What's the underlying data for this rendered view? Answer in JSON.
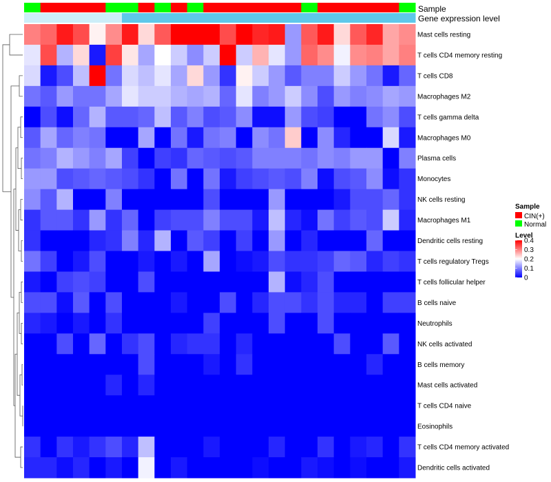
{
  "chart_data": {
    "type": "heatmap",
    "title": "",
    "annotation_tracks": [
      {
        "name": "Sample",
        "values": [
          "Normal",
          "CIN(+)",
          "CIN(+)",
          "CIN(+)",
          "CIN(+)",
          "Normal",
          "Normal",
          "CIN(+)",
          "Normal",
          "CIN(+)",
          "Normal",
          "CIN(+)",
          "CIN(+)",
          "CIN(+)",
          "CIN(+)",
          "CIN(+)",
          "CIN(+)",
          "Normal",
          "CIN(+)",
          "CIN(+)",
          "CIN(+)",
          "CIN(+)",
          "CIN(+)",
          "Normal"
        ]
      },
      {
        "name": "Gene expression level",
        "values": [
          "high",
          "high",
          "high",
          "high",
          "high",
          "high",
          "low",
          "low",
          "low",
          "low",
          "low",
          "low",
          "low",
          "low",
          "low",
          "low",
          "low",
          "low",
          "low",
          "low",
          "low",
          "low",
          "low",
          "low"
        ]
      }
    ],
    "rows": [
      "Mast cells resting",
      "T cells CD4 memory resting",
      "T cells CD8",
      "Macrophages M2",
      "T cells gamma delta",
      "Macrophages M0",
      "Plasma cells",
      "Monocytes",
      "NK cells resting",
      "Macrophages M1",
      "Dendritic cells resting",
      "T cells regulatory  Tregs",
      "T cells follicular helper",
      "B cells naive",
      "Neutrophils",
      "NK cells activated",
      "B cells memory",
      "Mast cells activated",
      "T cells CD4 naive",
      "Eosinophils",
      "T cells CD4 memory activated",
      "Dendritic cells activated"
    ],
    "values": [
      [
        0.3,
        0.32,
        0.38,
        0.34,
        0.21,
        0.29,
        0.38,
        0.23,
        0.33,
        0.4,
        0.4,
        0.4,
        0.34,
        0.4,
        0.37,
        0.38,
        0.12,
        0.33,
        0.38,
        0.23,
        0.33,
        0.37,
        0.27,
        0.29
      ],
      [
        0.18,
        0.34,
        0.14,
        0.23,
        0.02,
        0.35,
        0.22,
        0.13,
        0.2,
        0.16,
        0.11,
        0.16,
        0.4,
        0.16,
        0.26,
        0.18,
        0.12,
        0.32,
        0.29,
        0.19,
        0.29,
        0.3,
        0.27,
        0.3
      ],
      [
        0.17,
        0.02,
        0.06,
        0.15,
        0.4,
        0.09,
        0.17,
        0.15,
        0.18,
        0.13,
        0.23,
        0.12,
        0.04,
        0.21,
        0.16,
        0.12,
        0.07,
        0.1,
        0.1,
        0.16,
        0.12,
        0.09,
        0.02,
        0.08
      ],
      [
        0.09,
        0.07,
        0.12,
        0.09,
        0.09,
        0.13,
        0.18,
        0.16,
        0.16,
        0.14,
        0.13,
        0.14,
        0.08,
        0.18,
        0.1,
        0.12,
        0.16,
        0.11,
        0.06,
        0.12,
        0.1,
        0.11,
        0.13,
        0.12
      ],
      [
        0.0,
        0.06,
        0.01,
        0.08,
        0.14,
        0.07,
        0.07,
        0.08,
        0.15,
        0.07,
        0.1,
        0.06,
        0.07,
        0.11,
        0.01,
        0.01,
        0.12,
        0.06,
        0.05,
        0.0,
        0.0,
        0.09,
        0.11,
        0.06
      ],
      [
        0.07,
        0.13,
        0.08,
        0.1,
        0.09,
        0.0,
        0.0,
        0.13,
        0.0,
        0.09,
        0.02,
        0.09,
        0.1,
        0.0,
        0.11,
        0.09,
        0.24,
        0.0,
        0.11,
        0.03,
        0.0,
        0.0,
        0.17,
        0.02
      ],
      [
        0.09,
        0.1,
        0.14,
        0.12,
        0.1,
        0.13,
        0.05,
        0.0,
        0.05,
        0.04,
        0.08,
        0.07,
        0.06,
        0.07,
        0.1,
        0.1,
        0.1,
        0.09,
        0.11,
        0.1,
        0.12,
        0.12,
        0.0,
        0.1
      ],
      [
        0.12,
        0.12,
        0.06,
        0.07,
        0.08,
        0.07,
        0.06,
        0.04,
        0.0,
        0.09,
        0.0,
        0.09,
        0.02,
        0.05,
        0.06,
        0.07,
        0.06,
        0.1,
        0.01,
        0.06,
        0.07,
        0.11,
        0.01,
        0.04
      ],
      [
        0.11,
        0.07,
        0.14,
        0.0,
        0.0,
        0.1,
        0.0,
        0.0,
        0.0,
        0.0,
        0.0,
        0.06,
        0.0,
        0.0,
        0.0,
        0.12,
        0.0,
        0.0,
        0.0,
        0.02,
        0.06,
        0.06,
        0.08,
        0.04
      ],
      [
        0.04,
        0.07,
        0.07,
        0.04,
        0.12,
        0.04,
        0.08,
        0.0,
        0.05,
        0.06,
        0.06,
        0.1,
        0.06,
        0.06,
        0.02,
        0.15,
        0.03,
        0.01,
        0.09,
        0.05,
        0.07,
        0.06,
        0.16,
        0.03
      ],
      [
        0.04,
        0.0,
        0.0,
        0.0,
        0.03,
        0.04,
        0.1,
        0.03,
        0.14,
        0.0,
        0.07,
        0.05,
        0.0,
        0.05,
        0.0,
        0.12,
        0.0,
        0.03,
        0.0,
        0.0,
        0.0,
        0.08,
        0.0,
        0.0
      ],
      [
        0.09,
        0.05,
        0.0,
        0.02,
        0.06,
        0.0,
        0.0,
        0.02,
        0.0,
        0.02,
        0.0,
        0.13,
        0.0,
        0.01,
        0.02,
        0.06,
        0.04,
        0.04,
        0.05,
        0.08,
        0.07,
        0.03,
        0.05,
        0.04
      ],
      [
        0.02,
        0.0,
        0.05,
        0.06,
        0.05,
        0.0,
        0.0,
        0.06,
        0.0,
        0.0,
        0.0,
        0.0,
        0.0,
        0.0,
        0.0,
        0.14,
        0.01,
        0.03,
        0.06,
        0.0,
        0.0,
        0.0,
        0.0,
        0.0
      ],
      [
        0.06,
        0.06,
        0.01,
        0.07,
        0.0,
        0.06,
        0.0,
        0.0,
        0.0,
        0.02,
        0.0,
        0.0,
        0.06,
        0.0,
        0.03,
        0.06,
        0.06,
        0.04,
        0.06,
        0.03,
        0.03,
        0.0,
        0.05,
        0.05
      ],
      [
        0.03,
        0.02,
        0.0,
        0.02,
        0.0,
        0.04,
        0.0,
        0.0,
        0.0,
        0.0,
        0.0,
        0.05,
        0.0,
        0.0,
        0.0,
        0.06,
        0.0,
        0.0,
        0.06,
        0.0,
        0.0,
        0.0,
        0.0,
        0.0
      ],
      [
        0.0,
        0.0,
        0.06,
        0.0,
        0.08,
        0.0,
        0.04,
        0.06,
        0.0,
        0.03,
        0.04,
        0.04,
        0.0,
        0.03,
        0.0,
        0.0,
        0.0,
        0.0,
        0.0,
        0.06,
        0.0,
        0.0,
        0.07,
        0.0
      ],
      [
        0.0,
        0.0,
        0.0,
        0.0,
        0.0,
        0.0,
        0.0,
        0.06,
        0.0,
        0.0,
        0.0,
        0.02,
        0.0,
        0.04,
        0.0,
        0.0,
        0.0,
        0.0,
        0.0,
        0.0,
        0.0,
        0.03,
        0.0,
        0.0
      ],
      [
        0.0,
        0.0,
        0.0,
        0.0,
        0.0,
        0.03,
        0.0,
        0.03,
        0.0,
        0.0,
        0.0,
        0.0,
        0.0,
        0.0,
        0.0,
        0.0,
        0.0,
        0.0,
        0.0,
        0.0,
        0.0,
        0.0,
        0.0,
        0.0
      ],
      [
        0.0,
        0.0,
        0.0,
        0.0,
        0.0,
        0.0,
        0.0,
        0.0,
        0.0,
        0.0,
        0.0,
        0.0,
        0.0,
        0.0,
        0.0,
        0.0,
        0.0,
        0.0,
        0.0,
        0.0,
        0.0,
        0.0,
        0.0,
        0.0
      ],
      [
        0.0,
        0.0,
        0.0,
        0.0,
        0.0,
        0.0,
        0.0,
        0.0,
        0.0,
        0.0,
        0.0,
        0.0,
        0.0,
        0.0,
        0.0,
        0.0,
        0.0,
        0.0,
        0.0,
        0.0,
        0.0,
        0.0,
        0.0,
        0.0
      ],
      [
        0.04,
        0.0,
        0.04,
        0.02,
        0.04,
        0.06,
        0.03,
        0.15,
        0.0,
        0.0,
        0.0,
        0.02,
        0.0,
        0.0,
        0.0,
        0.03,
        0.0,
        0.0,
        0.04,
        0.0,
        0.02,
        0.03,
        0.0,
        0.04
      ],
      [
        0.03,
        0.03,
        0.01,
        0.03,
        0.0,
        0.02,
        0.0,
        0.19,
        0.0,
        0.02,
        0.0,
        0.0,
        0.0,
        0.0,
        0.01,
        0.0,
        0.0,
        0.02,
        0.01,
        0.0,
        0.01,
        0.0,
        0.0,
        0.02
      ]
    ],
    "color_scale": {
      "min": 0,
      "mid": 0.2,
      "max": 0.4,
      "low_color": "#0000ff",
      "mid_color": "#ffffff",
      "high_color": "#ff0000"
    },
    "legend": {
      "sample_title": "Sample",
      "sample_items": [
        {
          "label": "CIN(+)",
          "color": "#ff0000"
        },
        {
          "label": "Normal",
          "color": "#00ff00"
        }
      ],
      "level_title": "Level",
      "level_ticks": [
        "0.4",
        "0.3",
        "0.2",
        "0.1",
        "0"
      ],
      "level_tick_values": [
        0.4,
        0.3,
        0.2,
        0.1,
        0
      ]
    },
    "colors": {
      "sample": {
        "CIN(+)": "#ff0000",
        "Normal": "#00ff00"
      },
      "expression": {
        "high": "#cdeef8",
        "low": "#5ec8ea"
      }
    }
  }
}
